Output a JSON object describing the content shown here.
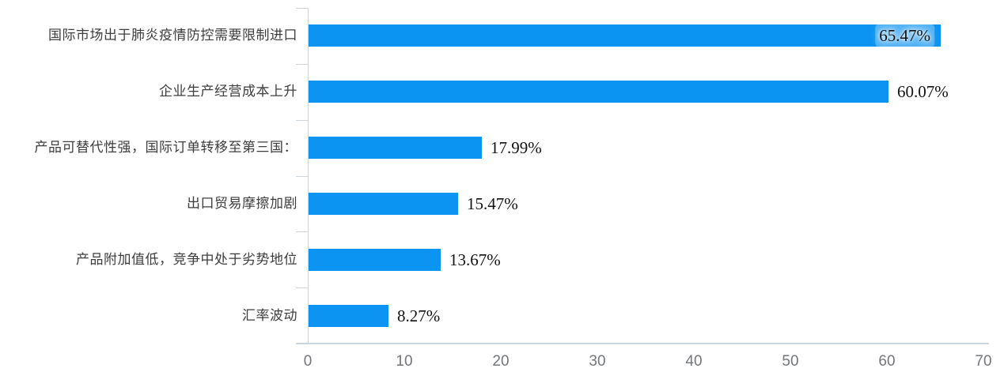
{
  "chart_data": {
    "type": "bar",
    "orientation": "horizontal",
    "title": "",
    "xlabel": "",
    "ylabel": "",
    "categories": [
      "国际市场出于肺炎疫情防控需要限制进口",
      "企业生产经营成本上升",
      "产品可替代性强，国际订单转移至第三国：",
      "出口贸易摩擦加剧",
      "产品附加值低，竞争中处于劣势地位",
      "汇率波动"
    ],
    "values": [
      65.47,
      60.07,
      17.99,
      15.47,
      13.67,
      8.27
    ],
    "data_labels": [
      "65.47%",
      "60.07%",
      "17.99%",
      "15.47%",
      "13.67%",
      "8.27%"
    ],
    "xlim": [
      0,
      70
    ],
    "x_ticks": [
      "0",
      "10",
      "20",
      "30",
      "40",
      "50",
      "60",
      "70"
    ],
    "grid": false,
    "legend": "none",
    "value_label_position": "outside_end",
    "first_value_label_inside": true
  },
  "colors": {
    "bar": "#0b94f2",
    "axis": "#ccd4dc",
    "category_label": "#3d3d3d",
    "value_label": "#121212",
    "tick_label": "#73767a"
  }
}
